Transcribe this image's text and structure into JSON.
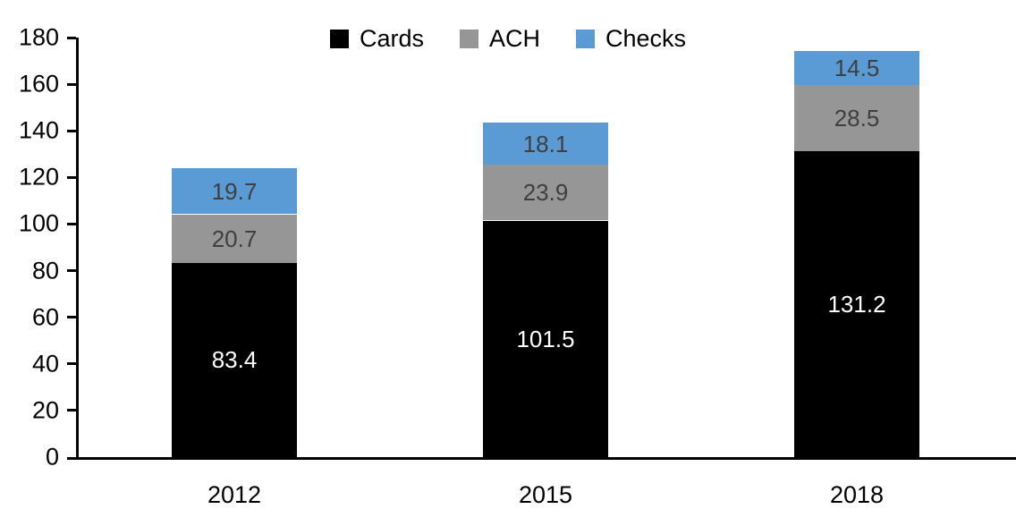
{
  "chart_data": {
    "type": "bar",
    "stacked": true,
    "title": "",
    "xlabel": "",
    "ylabel": "",
    "categories": [
      "2012",
      "2015",
      "2018"
    ],
    "series": [
      {
        "name": "Cards",
        "color": "#000000",
        "label_color": "#FFFFFF",
        "values": [
          83.4,
          101.5,
          131.2
        ]
      },
      {
        "name": "ACH",
        "color": "#969696",
        "label_color": "#3F3F3F",
        "values": [
          20.7,
          23.9,
          28.5
        ]
      },
      {
        "name": "Checks",
        "color": "#5B9BD5",
        "label_color": "#3F3F3F",
        "values": [
          19.7,
          18.1,
          14.5
        ]
      }
    ],
    "ylim": [
      0,
      180
    ],
    "ytick_step": 20,
    "yticks": [
      0,
      20,
      40,
      60,
      80,
      100,
      120,
      140,
      160,
      180
    ],
    "grid": false,
    "legend_position": "top-center",
    "axis_color": "#000000",
    "background_color": "#FFFFFF",
    "value_decimals": 1
  }
}
